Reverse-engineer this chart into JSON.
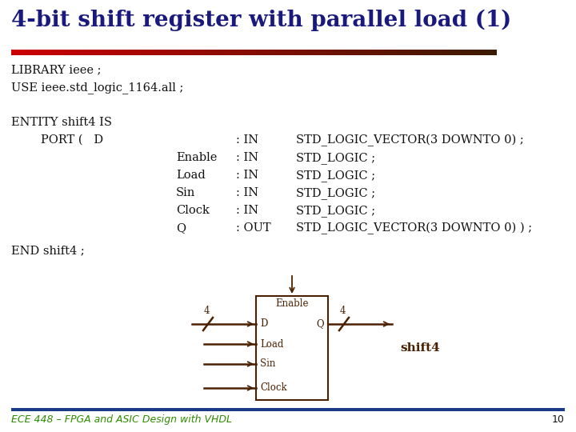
{
  "title": "4-bit shift register with parallel load (1)",
  "title_color": "#1a1a7e",
  "title_fontsize": 20,
  "bg_color": "#ffffff",
  "code_color": "#111111",
  "code_fontsize": 10.5,
  "footer_text": "ECE 448 – FPGA and ASIC Design with VHDL",
  "footer_color": "#2e8b00",
  "footer_fontsize": 9,
  "page_number": "10",
  "box_color": "#4a2000",
  "lines": [
    "LIBRARY ieee ;",
    "USE ieee.std_logic_1164.all ;",
    "",
    "ENTITY shift4 IS",
    "END shift4 ;"
  ],
  "port_d_line": "        PORT (   D",
  "port_entries": [
    [
      "",
      ": IN",
      "STD_LOGIC_VECTOR(3 DOWNTO 0) ;"
    ],
    [
      "Enable",
      ": IN",
      "STD_LOGIC ;"
    ],
    [
      "Load",
      ": IN",
      "STD_LOGIC ;"
    ],
    [
      "Sin",
      ": IN",
      "STD_LOGIC ;"
    ],
    [
      "Clock",
      ": IN",
      "STD_LOGIC ;"
    ],
    [
      "Q",
      ": OUT",
      "STD_LOGIC_VECTOR(3 DOWNTO 0) ) ;"
    ]
  ],
  "divider_left_color": "#cc0000",
  "divider_right_color": "#3a1a00",
  "footer_line_color": "#1a3a8a"
}
